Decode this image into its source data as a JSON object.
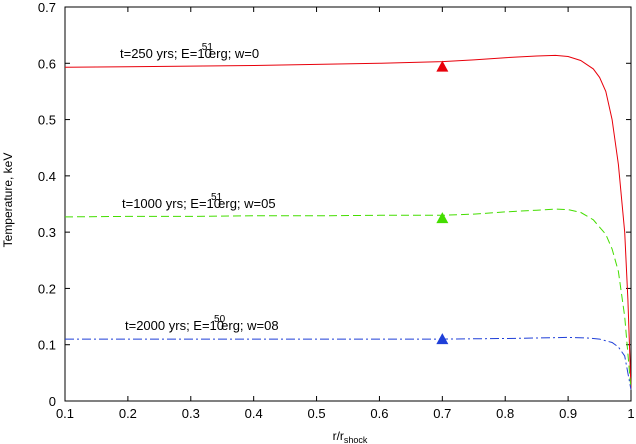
{
  "chart_data": {
    "type": "line",
    "title": "",
    "xlabel": {
      "main": "r/r",
      "sub": "shock"
    },
    "ylabel": "Temperature, keV",
    "xlim": [
      0.1,
      1.0
    ],
    "ylim": [
      0,
      0.7
    ],
    "xticks": [
      "0.1",
      "0.2",
      "0.3",
      "0.4",
      "0.5",
      "0.6",
      "0.7",
      "0.8",
      "0.9",
      "1"
    ],
    "yticks": [
      "0",
      "0.1",
      "0.2",
      "0.3",
      "0.4",
      "0.5",
      "0.6",
      "0.7"
    ],
    "grid": false,
    "series": [
      {
        "color": "#e8000b",
        "style": "solid",
        "annotation": {
          "before": "t=250 yrs; E=10",
          "sup": "51",
          "after": "erg; w=0"
        },
        "x": [
          0.1,
          0.2,
          0.3,
          0.4,
          0.5,
          0.6,
          0.7,
          0.75,
          0.8,
          0.85,
          0.88,
          0.9,
          0.92,
          0.94,
          0.95,
          0.96,
          0.97,
          0.98,
          0.99,
          0.995,
          1.0
        ],
        "y": [
          0.593,
          0.594,
          0.595,
          0.596,
          0.598,
          0.6,
          0.603,
          0.606,
          0.61,
          0.613,
          0.614,
          0.612,
          0.605,
          0.59,
          0.575,
          0.55,
          0.5,
          0.42,
          0.3,
          0.18,
          0.02
        ],
        "marker": {
          "shape": "triangle",
          "x": 0.7,
          "y": 0.594
        }
      },
      {
        "color": "#44dd00",
        "style": "dashed",
        "annotation": {
          "before": "t=1000 yrs; E=10",
          "sup": "51",
          "after": "erg; w=05"
        },
        "x": [
          0.1,
          0.2,
          0.3,
          0.4,
          0.5,
          0.6,
          0.7,
          0.75,
          0.8,
          0.85,
          0.88,
          0.9,
          0.92,
          0.94,
          0.96,
          0.97,
          0.98,
          0.99,
          1.0
        ],
        "y": [
          0.327,
          0.328,
          0.328,
          0.329,
          0.329,
          0.33,
          0.33,
          0.332,
          0.336,
          0.339,
          0.341,
          0.34,
          0.335,
          0.322,
          0.296,
          0.27,
          0.23,
          0.15,
          0.02
        ],
        "marker": {
          "shape": "triangle",
          "x": 0.7,
          "y": 0.325
        }
      },
      {
        "color": "#1f3fd8",
        "style": "dashdot",
        "annotation": {
          "before": "t=2000 yrs; E=10",
          "sup": "50",
          "after": "erg; w=08"
        },
        "x": [
          0.1,
          0.2,
          0.3,
          0.4,
          0.5,
          0.6,
          0.7,
          0.8,
          0.85,
          0.9,
          0.93,
          0.95,
          0.97,
          0.98,
          0.99,
          1.0
        ],
        "y": [
          0.11,
          0.11,
          0.11,
          0.11,
          0.11,
          0.11,
          0.11,
          0.111,
          0.112,
          0.113,
          0.112,
          0.11,
          0.104,
          0.096,
          0.08,
          0.02
        ],
        "marker": {
          "shape": "triangle",
          "x": 0.7,
          "y": 0.11
        }
      }
    ]
  }
}
